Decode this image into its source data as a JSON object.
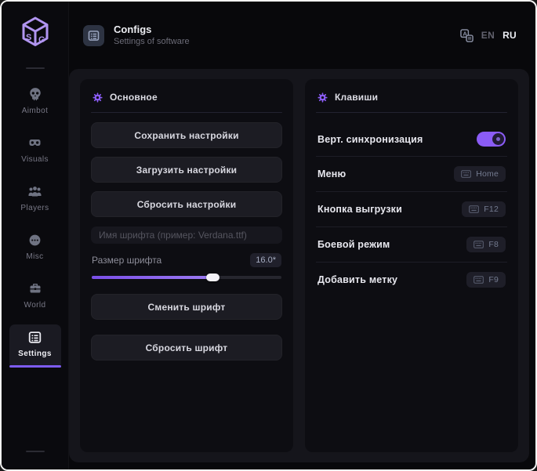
{
  "window": {
    "colors": {
      "accent": "#8b5cf6",
      "accent_light": "#a78bfa",
      "active_bar": "#7d5cf0",
      "panel_bg": "#15151b",
      "page_bg": "#08080b"
    }
  },
  "sidebar": {
    "logo_icon": "sg-cube-logo",
    "logo_letters": {
      "left": "S",
      "right": "G"
    },
    "items": [
      {
        "label": "Aimbot",
        "icon": "skull-icon",
        "active": false
      },
      {
        "label": "Visuals",
        "icon": "vr-goggles-icon",
        "active": false
      },
      {
        "label": "Players",
        "icon": "players-icon",
        "active": false
      },
      {
        "label": "Misc",
        "icon": "misc-circle-icon",
        "active": false
      },
      {
        "label": "World",
        "icon": "briefcase-icon",
        "active": false
      },
      {
        "label": "Settings",
        "icon": "settings-list-icon",
        "active": true
      }
    ]
  },
  "header": {
    "icon": "configs-list-icon",
    "title": "Configs",
    "subtitle": "Settings of software",
    "language_icon": "translate-icon",
    "languages": [
      {
        "label": "EN",
        "active": false
      },
      {
        "label": "RU",
        "active": true
      }
    ]
  },
  "main_section": {
    "icon": "gear-icon",
    "title": "Основное",
    "buttons": {
      "save": "Сохранить настройки",
      "load": "Загрузить настройки",
      "reset": "Сбросить настройки",
      "change_font": "Сменить шрифт",
      "reset_font": "Сбросить шрифт"
    },
    "font_name_placeholder": "Имя шрифта (пример: Verdana.ttf)",
    "font_size": {
      "label": "Размер шрифта",
      "value": "16.0*",
      "percent": 64
    }
  },
  "keys_section": {
    "icon": "gear-icon",
    "title": "Клавиши",
    "rows": [
      {
        "label": "Верт. синхронизация",
        "type": "toggle",
        "state": "on"
      },
      {
        "label": "Меню",
        "type": "keybind",
        "key": "Home"
      },
      {
        "label": "Кнопка выгрузки",
        "type": "keybind",
        "key": "F12"
      },
      {
        "label": "Боевой режим",
        "type": "keybind",
        "key": "F8"
      },
      {
        "label": "Добавить метку",
        "type": "keybind",
        "key": "F9"
      }
    ]
  }
}
